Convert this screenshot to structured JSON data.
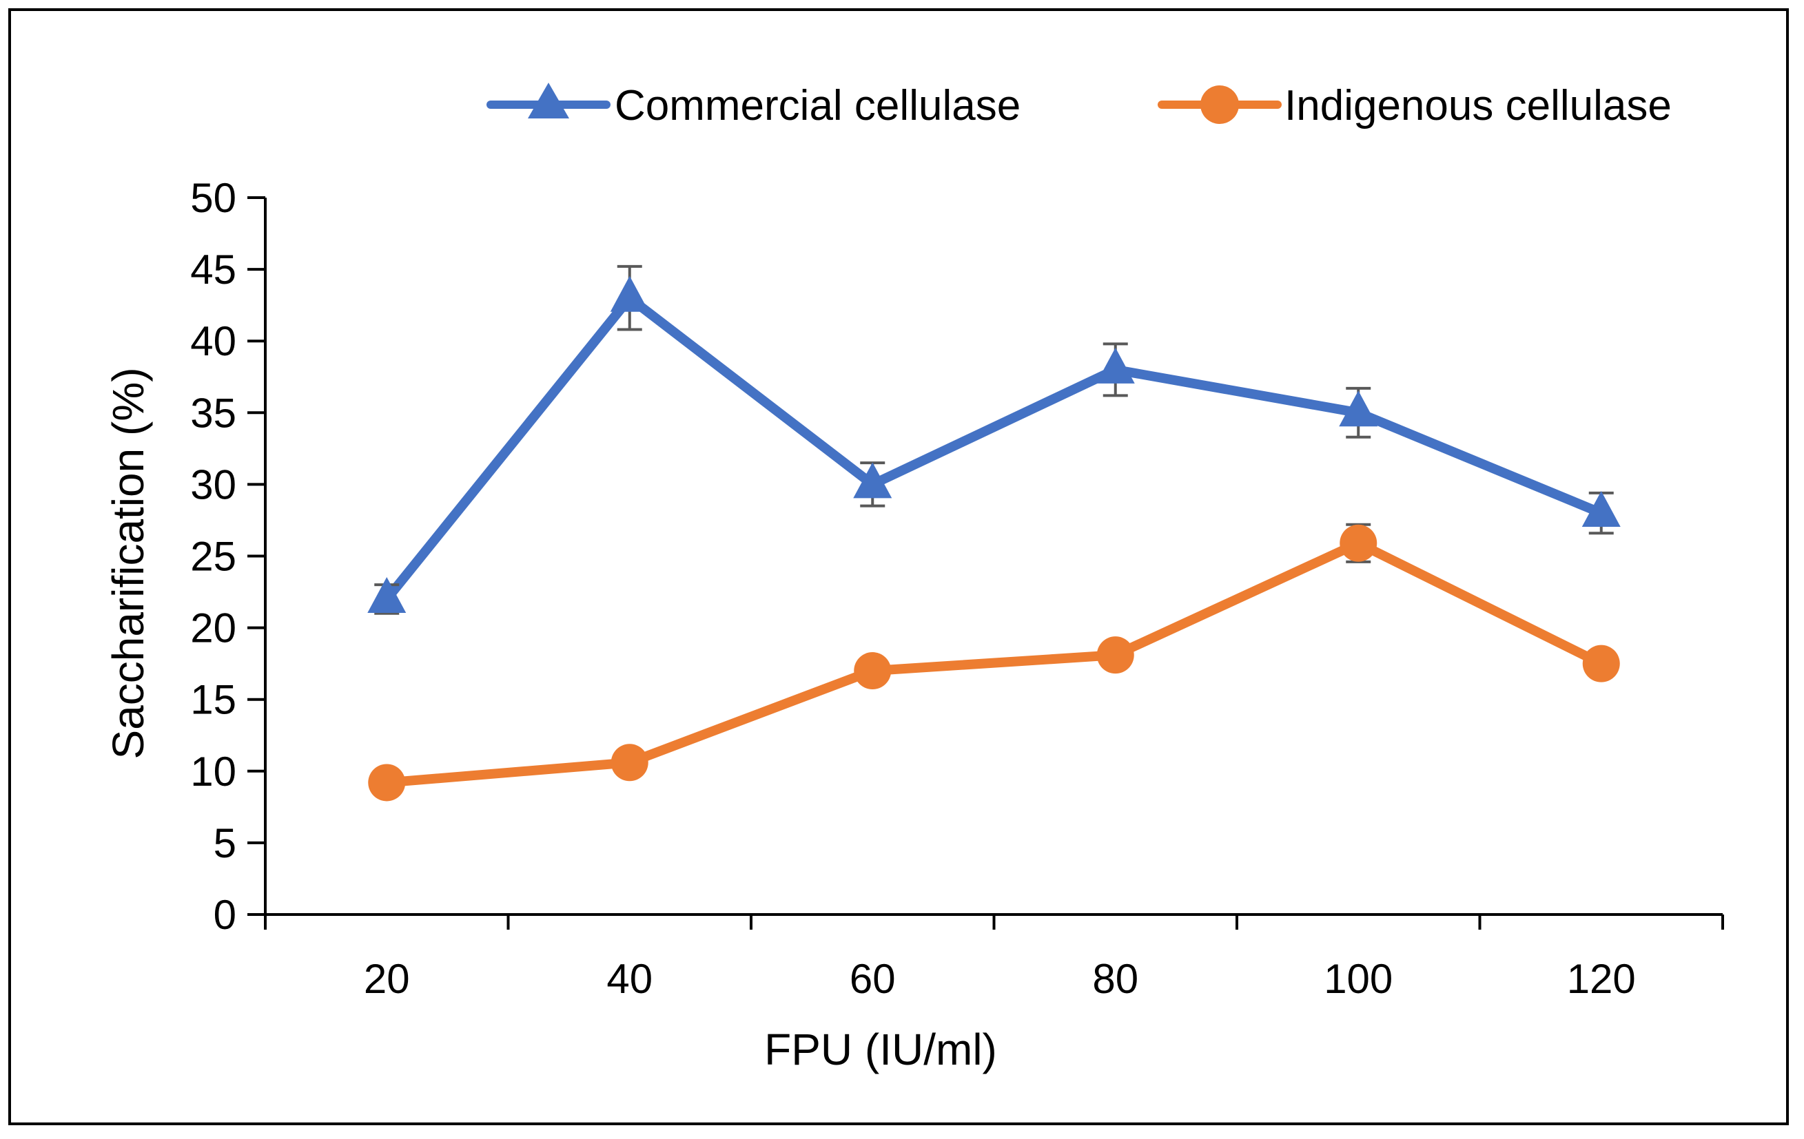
{
  "chart_data": {
    "type": "line",
    "title": "",
    "xlabel": "FPU (IU/ml)",
    "ylabel": "Saccharification (%)",
    "categories": [
      "20",
      "40",
      "60",
      "80",
      "100",
      "120"
    ],
    "x": [
      20,
      40,
      60,
      80,
      100,
      120
    ],
    "ylim": [
      0,
      50
    ],
    "yticks": [
      "0",
      "5",
      "10",
      "15",
      "20",
      "25",
      "30",
      "35",
      "40",
      "45",
      "50"
    ],
    "grid": false,
    "legend_position": "top",
    "series": [
      {
        "name": "Commercial cellulase",
        "marker": "triangle",
        "color": "#4472C4",
        "values": [
          22,
          43,
          30,
          38,
          35,
          28
        ],
        "errors": [
          1.0,
          2.2,
          1.5,
          1.8,
          1.7,
          1.4
        ]
      },
      {
        "name": "Indigenous cellulase",
        "marker": "circle",
        "color": "#ED7D31",
        "values": [
          9.2,
          10.6,
          17,
          18.1,
          25.9,
          17.5
        ],
        "errors": [
          0,
          0,
          0,
          0,
          1.3,
          0
        ]
      }
    ]
  }
}
